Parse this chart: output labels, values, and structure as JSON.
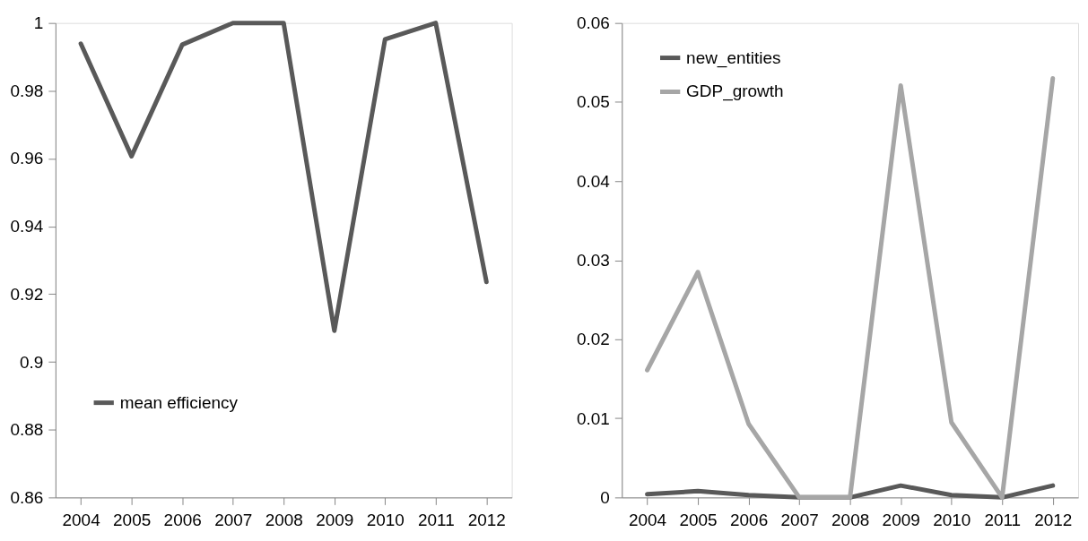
{
  "chart_data": [
    {
      "type": "line",
      "categories": [
        "2004",
        "2005",
        "2006",
        "2007",
        "2008",
        "2009",
        "2010",
        "2011",
        "2012"
      ],
      "series": [
        {
          "name": "mean efficiency",
          "color": "#595959",
          "values": [
            0.9939,
            0.9607,
            0.9936,
            1.0,
            1.0,
            0.9092,
            0.9952,
            1.0,
            0.9236
          ]
        }
      ],
      "ylim": [
        0.86,
        1
      ],
      "yticks": [
        0.86,
        0.88,
        0.9,
        0.92,
        0.94,
        0.96,
        0.98,
        1
      ],
      "grid": false,
      "legend": "bottom left",
      "marker": "none",
      "line_style": "solid"
    },
    {
      "type": "line",
      "categories": [
        "2004",
        "2005",
        "2006",
        "2007",
        "2008",
        "2009",
        "2010",
        "2011",
        "2012"
      ],
      "series": [
        {
          "name": "new_entities",
          "color": "#595959",
          "values": [
            0.0004,
            0.0008,
            0.0003,
            0,
            0,
            0.0015,
            0.0003,
            0,
            0.0015
          ]
        },
        {
          "name": "GDP_growth",
          "color": "#a6a6a6",
          "values": [
            0.0161,
            0.0285,
            0.0093,
            0,
            0,
            0.0521,
            0.0095,
            0,
            0.053
          ]
        }
      ],
      "ylim": [
        0,
        0.06
      ],
      "yticks": [
        0,
        0.01,
        0.02,
        0.03,
        0.04,
        0.05,
        0.06
      ],
      "grid": false,
      "legend": "top left",
      "marker": "none",
      "line_style": "solid"
    }
  ]
}
